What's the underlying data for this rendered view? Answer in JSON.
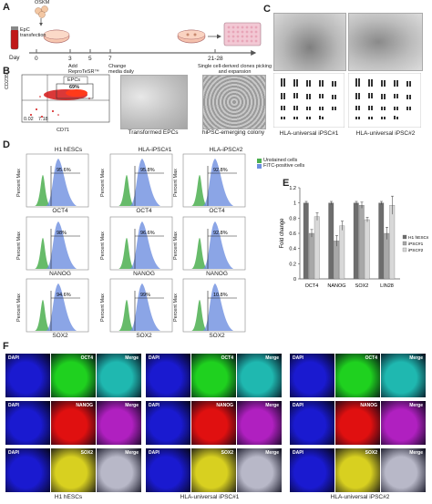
{
  "panels": {
    "A": "A",
    "B": "B",
    "C": "C",
    "D": "D",
    "E": "E",
    "F": "F"
  },
  "panelA": {
    "oskm": "OSKM",
    "epc_lines": [
      "EpC",
      "transfection"
    ],
    "day_label": "Day",
    "days": [
      "0",
      "3",
      "5",
      "7",
      "21-28"
    ],
    "events": [
      {
        "day": "3",
        "lines": [
          "Add",
          "ReproTeSR™"
        ]
      },
      {
        "day": "7",
        "lines": [
          "Change",
          "media daily"
        ]
      },
      {
        "day": "21-28",
        "lines": [
          "Single cell-derived clones picking",
          "and expansion"
        ]
      }
    ]
  },
  "panelB": {
    "flow": {
      "gate_label": "EPCs",
      "gate_value": "69%",
      "y_label": "CD235",
      "x_label": "CD71",
      "quad": [
        "0.02",
        "7.18"
      ]
    },
    "captions": [
      "Transformed EPCs",
      "hiPSC-emerging colony"
    ]
  },
  "panelC": {
    "captions": [
      "HLA-universal iPSC#1",
      "HLA-universal iPSC#2"
    ]
  },
  "panelD": {
    "columns": [
      "H1 hESCs",
      "HLA-iPSC#1",
      "HLA-iPSC#2"
    ],
    "markers": [
      "OCT4",
      "NANOG",
      "SOX2"
    ],
    "y_label": "Percent Max",
    "legend": [
      "Unstained cells",
      "FITC-positive cells"
    ],
    "legend_colors": [
      "#4caf50",
      "#6e8fe0"
    ],
    "percentages": [
      [
        "95.6%",
        "95.8%",
        "92.8%"
      ],
      [
        "98%",
        "96.6%",
        "92.8%"
      ],
      [
        "94.6%",
        "99%",
        "10.8%"
      ]
    ]
  },
  "chart_data": {
    "type": "bar",
    "title": "",
    "ylabel": "Fold change",
    "ylim": [
      0,
      1.2
    ],
    "yticks": [
      "0",
      "0.2",
      "0.4",
      "0.6",
      "0.8",
      "1",
      "1.2"
    ],
    "categories": [
      "OCT4",
      "NANOG",
      "SOX2",
      "LIN28"
    ],
    "series": [
      {
        "name": "H1 hESCs",
        "color": "#6d6d6d",
        "values": [
          1.0,
          1.0,
          1.0,
          1.0
        ]
      },
      {
        "name": "iPSC#1",
        "color": "#a8a8a8",
        "values": [
          0.6,
          0.5,
          0.97,
          0.6
        ]
      },
      {
        "name": "iPSC#2",
        "color": "#d8d8d8",
        "values": [
          0.82,
          0.7,
          0.78,
          0.97
        ]
      }
    ],
    "errors": [
      [
        0.02,
        0.02,
        0.02,
        0.02
      ],
      [
        0.05,
        0.07,
        0.04,
        0.08
      ],
      [
        0.05,
        0.06,
        0.03,
        0.12
      ]
    ]
  },
  "panelF": {
    "groups": [
      "H1 hESCs",
      "HLA-universal iPSC#1",
      "HLA-universal iPSC#2"
    ],
    "rows": [
      {
        "channel": "DAPI",
        "marker": "OCT4",
        "merge": "Merge",
        "color": "#1fd11f",
        "merge_color": "#1fb8b0"
      },
      {
        "channel": "DAPI",
        "marker": "NANOG",
        "merge": "Merge",
        "color": "#e01010",
        "merge_color": "#b020c0"
      },
      {
        "channel": "DAPI",
        "marker": "SOX2",
        "merge": "Merge",
        "color": "#d8d020",
        "merge_color": "#b8b8c8"
      }
    ]
  }
}
